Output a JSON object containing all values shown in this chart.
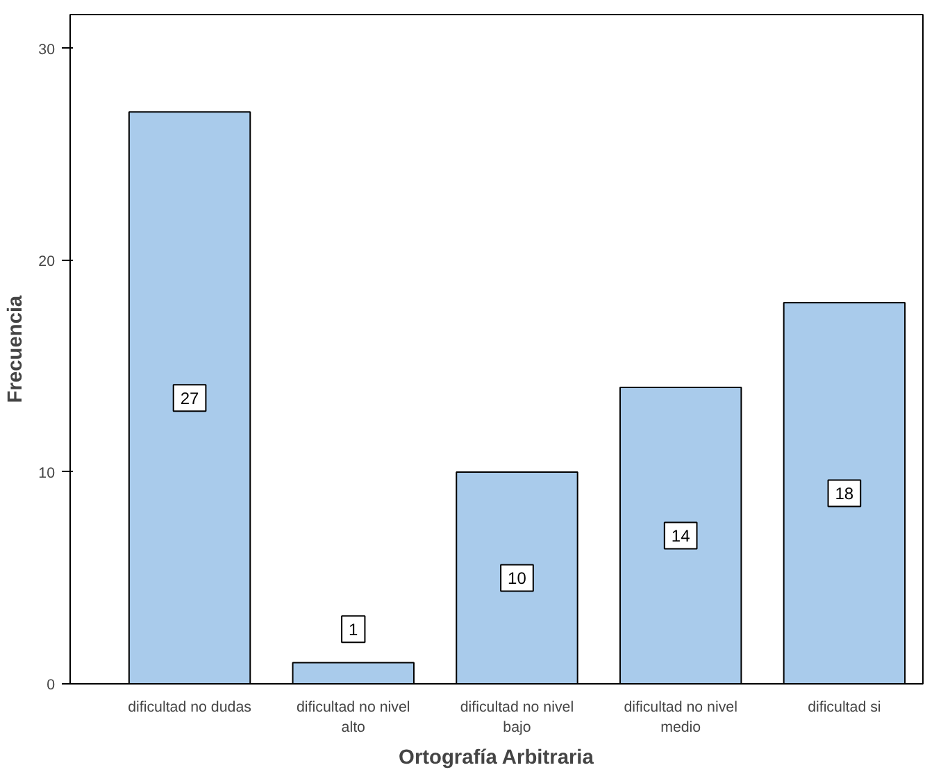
{
  "chart_data": {
    "type": "bar",
    "xlabel": "Ortografía Arbitraria",
    "ylabel": "Frecuencia",
    "categories": [
      "dificultad no dudas",
      "dificultad no nivel alto",
      "dificultad no nivel bajo",
      "dificultad no nivel medio",
      "dificultad si"
    ],
    "values": [
      27,
      1,
      10,
      14,
      18
    ],
    "color": "#a9cbeb",
    "ylim": [
      0,
      31.6
    ],
    "yticks": [
      0,
      10,
      20,
      30
    ],
    "grid": false,
    "data_labels": true
  }
}
